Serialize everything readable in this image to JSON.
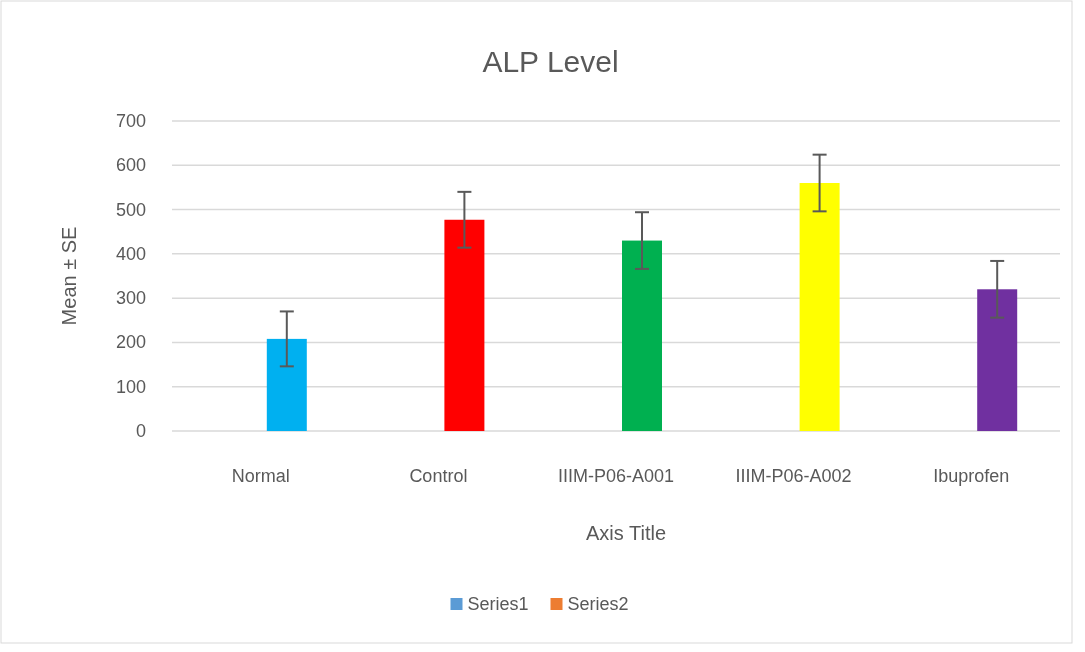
{
  "chart_data": {
    "type": "bar",
    "title": "ALP Level",
    "xlabel": "Axis Title",
    "ylabel": "Mean ± SE",
    "categories": [
      "Normal",
      "Control",
      "IIIM-P06-A001",
      "IIIM-P06-A002",
      "Ibuprofen"
    ],
    "series": [
      {
        "name": "Series1",
        "color": "#5b9bd5",
        "colors": [
          "#00b0f0",
          "#ff0000",
          "#00b050",
          "#ffff00",
          "#7030a0"
        ],
        "values": [
          208,
          477,
          430,
          560,
          320
        ],
        "errors": [
          62,
          63,
          64,
          64,
          64
        ]
      },
      {
        "name": "Series2",
        "color": "#ed7d31",
        "values": [
          null,
          null,
          null,
          null,
          null
        ]
      }
    ],
    "ylim": [
      0,
      700
    ],
    "yticks": [
      0,
      100,
      200,
      300,
      400,
      500,
      600,
      700
    ],
    "grid": "y",
    "legend": "bottom"
  }
}
